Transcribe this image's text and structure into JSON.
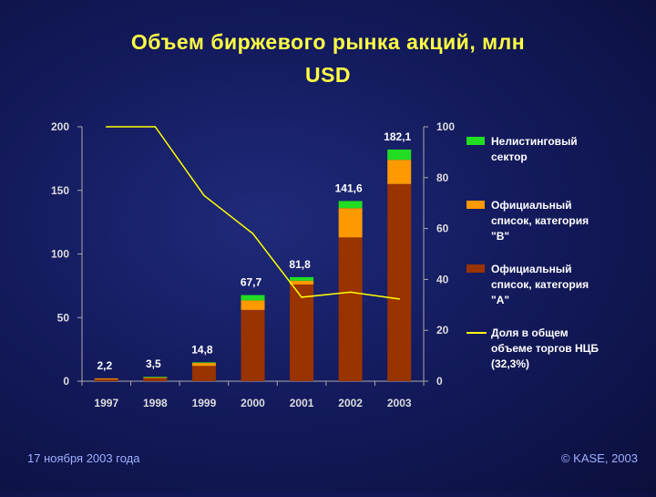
{
  "title": "Объем биржевого рынка акций, млн\nUSD",
  "footer": {
    "date": "17 ноября 2003 года",
    "copyright": "© KASE, 2003"
  },
  "colors": {
    "nelisting": "#22dd22",
    "b": "#ff9900",
    "a": "#993300",
    "line": "#ffff00",
    "axis": "#aaaaaa",
    "text": "#ffffff"
  },
  "chart_data": {
    "type": "bar",
    "categories": [
      "1997",
      "1998",
      "1999",
      "2000",
      "2001",
      "2002",
      "2003"
    ],
    "totals": [
      2.2,
      3.5,
      14.8,
      67.7,
      81.8,
      141.6,
      182.1
    ],
    "total_labels": [
      "2,2",
      "3,5",
      "14,8",
      "67,7",
      "81,8",
      "141,6",
      "182,1"
    ],
    "series": [
      {
        "name": "Официальный список, категория \"A\"",
        "key": "a",
        "values": [
          1.5,
          2.5,
          12,
          56,
          76,
          113,
          155
        ]
      },
      {
        "name": "Официальный список, категория \"B\"",
        "key": "b",
        "values": [
          0.7,
          0.5,
          2.3,
          7.5,
          3,
          23,
          19
        ]
      },
      {
        "name": "Нелистинговый сектор",
        "key": "nelisting",
        "values": [
          0,
          0.5,
          0.5,
          4.2,
          2.8,
          5.6,
          8.1
        ]
      }
    ],
    "line": {
      "name": "Доля в общем объеме торгов НЦБ (32,3%)",
      "values": [
        100,
        100,
        73,
        58,
        33,
        35,
        32.3
      ]
    },
    "ylim_left": [
      0,
      200
    ],
    "yticks_left": [
      0,
      50,
      100,
      150,
      200
    ],
    "ylim_right": [
      0,
      100
    ],
    "yticks_right": [
      0,
      20,
      40,
      60,
      80,
      100
    ],
    "legend": [
      {
        "key": "nelisting",
        "kind": "box",
        "label": "Нелистинговый сектор"
      },
      {
        "key": "b",
        "kind": "box",
        "label": "Официальный список, категория \"B\""
      },
      {
        "key": "a",
        "kind": "box",
        "label": "Официальный список, категория \"A\""
      },
      {
        "key": "line",
        "kind": "line",
        "label": "Доля в общем объеме торгов НЦБ (32,3%)"
      }
    ],
    "legend_position": "right",
    "grid": false
  }
}
